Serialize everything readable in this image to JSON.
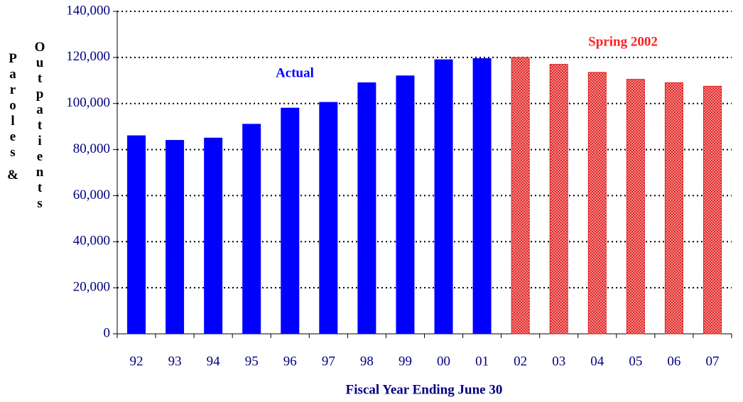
{
  "chart_data": {
    "type": "bar",
    "categories": [
      "92",
      "93",
      "94",
      "95",
      "96",
      "97",
      "98",
      "99",
      "00",
      "01",
      "02",
      "03",
      "04",
      "05",
      "06",
      "07"
    ],
    "series": [
      {
        "name": "Actual",
        "color": "#0000ff",
        "values": [
          86000,
          84000,
          85000,
          91000,
          98000,
          100500,
          109000,
          112000,
          119000,
          119500,
          null,
          null,
          null,
          null,
          null,
          null
        ]
      },
      {
        "name": "Spring 2002",
        "color": "#ff2020",
        "values": [
          null,
          null,
          null,
          null,
          null,
          null,
          null,
          null,
          null,
          null,
          120000,
          117000,
          113500,
          110500,
          109000,
          107500
        ]
      }
    ],
    "x_label": "Fiscal Year Ending June 30",
    "y_label": [
      "Paroles &",
      "Outpatients"
    ],
    "ylim": [
      0,
      140000
    ],
    "yticks": [
      {
        "value": 0,
        "label": "0"
      },
      {
        "value": 20000,
        "label": "20,000"
      },
      {
        "value": 40000,
        "label": "40,000"
      },
      {
        "value": 60000,
        "label": "60,000"
      },
      {
        "value": 80000,
        "label": "80,000"
      },
      {
        "value": 100000,
        "label": "100,000"
      },
      {
        "value": 120000,
        "label": "120,000"
      },
      {
        "value": 140000,
        "label": "140,000"
      }
    ],
    "grid": true
  }
}
